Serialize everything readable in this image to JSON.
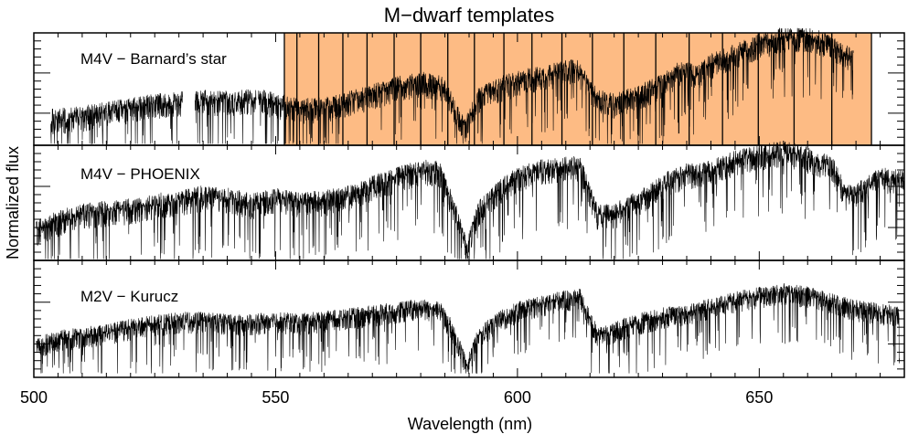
{
  "chart_data": {
    "type": "line",
    "title": "M−dwarf templates",
    "xlabel": "Wavelength (nm)",
    "ylabel": "Normalized flux",
    "xlim": [
      500,
      680
    ],
    "x_ticks": [
      {
        "value": 500,
        "label": "500"
      },
      {
        "value": 550,
        "label": "550"
      },
      {
        "value": 600,
        "label": "600"
      },
      {
        "value": 650,
        "label": "650"
      }
    ],
    "x_minor_step": 5,
    "shading": {
      "color": "#FDBB84",
      "x_range": [
        551.8,
        673.2
      ],
      "order_boundaries": [
        551.8,
        554.4,
        558.9,
        563.9,
        568.9,
        574.5,
        580.0,
        585.6,
        591.1,
        597.2,
        603.0,
        609.2,
        615.5,
        622.0,
        628.6,
        635.5,
        642.4,
        649.8,
        657.2,
        665.0,
        673.2
      ]
    },
    "panels": [
      {
        "label": "M4V − Barnard’s star",
        "x_range": [
          503.5,
          669.5
        ],
        "gaps": [
          [
            530.8,
            533.3
          ],
          [
            546.0,
            546.4
          ]
        ],
        "points": [
          [
            503.5,
            0.22
          ],
          [
            510,
            0.25
          ],
          [
            515,
            0.3
          ],
          [
            520,
            0.33
          ],
          [
            525,
            0.38
          ],
          [
            530,
            0.4
          ],
          [
            533.5,
            0.42
          ],
          [
            540,
            0.4
          ],
          [
            546.5,
            0.43
          ],
          [
            550,
            0.38
          ],
          [
            555,
            0.33
          ],
          [
            560,
            0.34
          ],
          [
            565,
            0.4
          ],
          [
            570,
            0.47
          ],
          [
            575,
            0.55
          ],
          [
            580,
            0.6
          ],
          [
            585,
            0.55
          ],
          [
            589,
            0.12
          ],
          [
            592,
            0.44
          ],
          [
            597,
            0.56
          ],
          [
            602,
            0.63
          ],
          [
            607,
            0.68
          ],
          [
            612,
            0.74
          ],
          [
            616.5,
            0.44
          ],
          [
            620,
            0.38
          ],
          [
            625,
            0.46
          ],
          [
            630,
            0.58
          ],
          [
            634,
            0.72
          ],
          [
            637,
            0.66
          ],
          [
            640,
            0.78
          ],
          [
            645,
            0.88
          ],
          [
            650,
            0.98
          ],
          [
            655,
            1.05
          ],
          [
            660,
            1.06
          ],
          [
            665,
            0.97
          ],
          [
            669.5,
            0.84
          ]
        ]
      },
      {
        "label": "M4V − PHOENIX",
        "x_range": [
          500.5,
          680
        ],
        "gaps": [],
        "points": [
          [
            500.5,
            0.25
          ],
          [
            505,
            0.35
          ],
          [
            510,
            0.42
          ],
          [
            515,
            0.45
          ],
          [
            520,
            0.47
          ],
          [
            525,
            0.52
          ],
          [
            530,
            0.55
          ],
          [
            535,
            0.6
          ],
          [
            540,
            0.58
          ],
          [
            545,
            0.52
          ],
          [
            550,
            0.58
          ],
          [
            555,
            0.54
          ],
          [
            560,
            0.55
          ],
          [
            565,
            0.6
          ],
          [
            570,
            0.7
          ],
          [
            575,
            0.78
          ],
          [
            580,
            0.86
          ],
          [
            584,
            0.84
          ],
          [
            587,
            0.45
          ],
          [
            589.5,
            0.08
          ],
          [
            592,
            0.45
          ],
          [
            596,
            0.65
          ],
          [
            600,
            0.78
          ],
          [
            605,
            0.86
          ],
          [
            610,
            0.9
          ],
          [
            613,
            0.88
          ],
          [
            616.5,
            0.42
          ],
          [
            620,
            0.42
          ],
          [
            625,
            0.55
          ],
          [
            630,
            0.72
          ],
          [
            635,
            0.82
          ],
          [
            640,
            0.85
          ],
          [
            645,
            0.95
          ],
          [
            650,
            1.0
          ],
          [
            655,
            1.05
          ],
          [
            660,
            0.98
          ],
          [
            665,
            0.9
          ],
          [
            668,
            0.6
          ],
          [
            670,
            0.62
          ],
          [
            675,
            0.78
          ],
          [
            680,
            0.75
          ]
        ]
      },
      {
        "label": "M2V − Kurucz",
        "x_range": [
          500.5,
          679
        ],
        "gaps": [],
        "points": [
          [
            500.5,
            0.3
          ],
          [
            505,
            0.38
          ],
          [
            510,
            0.42
          ],
          [
            515,
            0.45
          ],
          [
            520,
            0.52
          ],
          [
            525,
            0.56
          ],
          [
            530,
            0.6
          ],
          [
            535,
            0.6
          ],
          [
            540,
            0.58
          ],
          [
            545,
            0.57
          ],
          [
            550,
            0.6
          ],
          [
            555,
            0.58
          ],
          [
            560,
            0.61
          ],
          [
            565,
            0.64
          ],
          [
            570,
            0.68
          ],
          [
            575,
            0.72
          ],
          [
            580,
            0.76
          ],
          [
            584,
            0.72
          ],
          [
            587,
            0.45
          ],
          [
            589.5,
            0.05
          ],
          [
            592,
            0.42
          ],
          [
            596,
            0.6
          ],
          [
            600,
            0.72
          ],
          [
            605,
            0.8
          ],
          [
            610,
            0.86
          ],
          [
            613,
            0.88
          ],
          [
            616.5,
            0.42
          ],
          [
            620,
            0.48
          ],
          [
            625,
            0.58
          ],
          [
            630,
            0.65
          ],
          [
            635,
            0.7
          ],
          [
            640,
            0.76
          ],
          [
            645,
            0.84
          ],
          [
            650,
            0.9
          ],
          [
            655,
            0.94
          ],
          [
            660,
            0.9
          ],
          [
            665,
            0.82
          ],
          [
            670,
            0.74
          ],
          [
            675,
            0.7
          ],
          [
            679,
            0.68
          ]
        ]
      }
    ]
  }
}
